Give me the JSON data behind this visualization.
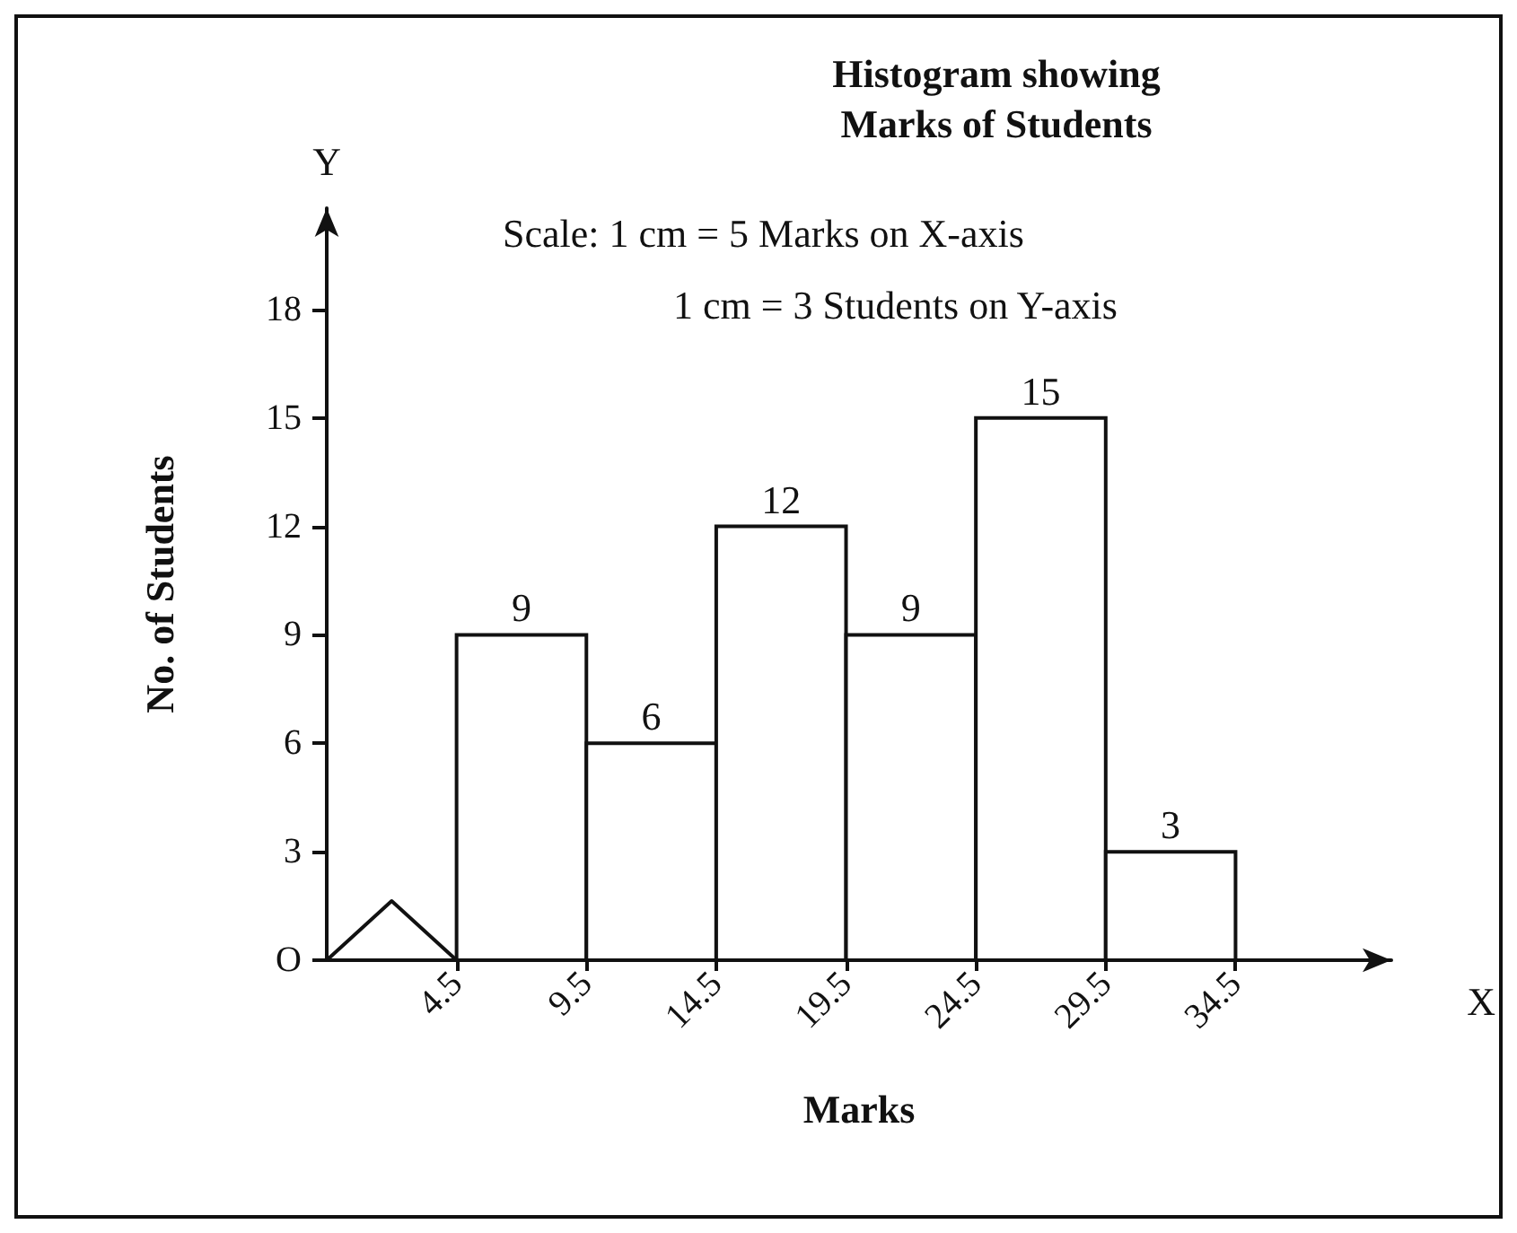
{
  "chart_data": {
    "type": "histogram",
    "title": "Histogram showing\nMarks of Students",
    "xlabel": "Marks",
    "ylabel": "No. of Students",
    "annotations": [
      "Scale: 1 cm = 5 Marks on X-axis",
      "1 cm = 3 Students on Y-axis",
      "Y",
      "X"
    ],
    "bins": [
      4.5,
      9.5,
      14.5,
      19.5,
      24.5,
      29.5,
      34.5
    ],
    "values": [
      9,
      6,
      12,
      9,
      15,
      3
    ],
    "color": "#ffffff",
    "data_labels": true,
    "xlim": [
      -0.5,
      40.5
    ],
    "xticks": [
      {
        "value": 4.5,
        "label": "4.5"
      },
      {
        "value": 9.5,
        "label": "9.5"
      },
      {
        "value": 14.5,
        "label": "14.5"
      },
      {
        "value": 19.5,
        "label": "19.5"
      },
      {
        "value": 24.5,
        "label": "24.5"
      },
      {
        "value": 29.5,
        "label": "29.5"
      },
      {
        "value": 34.5,
        "label": "34.5"
      }
    ],
    "ylim": [
      0,
      20.8
    ],
    "yticks": [
      {
        "value": 0,
        "label": "O"
      },
      3,
      6,
      9,
      12,
      15,
      18
    ],
    "grid": false
  }
}
